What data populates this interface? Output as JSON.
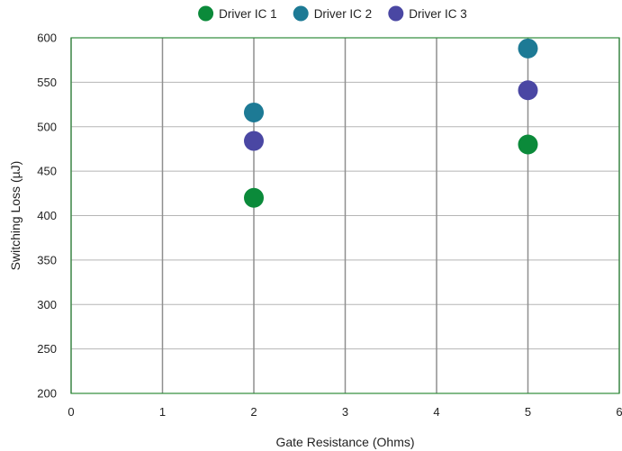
{
  "chart_data": {
    "type": "scatter",
    "title": "",
    "xlabel": "Gate Resistance (Ohms)",
    "ylabel": "Switching Loss (µJ)",
    "xlim": [
      0,
      6
    ],
    "ylim": [
      200,
      600
    ],
    "xticks": [
      0,
      1,
      2,
      3,
      4,
      5,
      6
    ],
    "yticks": [
      200,
      250,
      300,
      350,
      400,
      450,
      500,
      550,
      600
    ],
    "grid": true,
    "legend_position": "top",
    "plot_border_color": "#2E8B3A",
    "series": [
      {
        "name": "Driver IC 1",
        "color": "#0B8A3A",
        "points": [
          {
            "x": 2,
            "y": 420
          },
          {
            "x": 5,
            "y": 480
          }
        ]
      },
      {
        "name": "Driver IC 2",
        "color": "#1D7A95",
        "points": [
          {
            "x": 2,
            "y": 516
          },
          {
            "x": 5,
            "y": 588
          }
        ]
      },
      {
        "name": "Driver IC 3",
        "color": "#4A47A3",
        "points": [
          {
            "x": 2,
            "y": 484
          },
          {
            "x": 5,
            "y": 541
          }
        ]
      }
    ]
  }
}
